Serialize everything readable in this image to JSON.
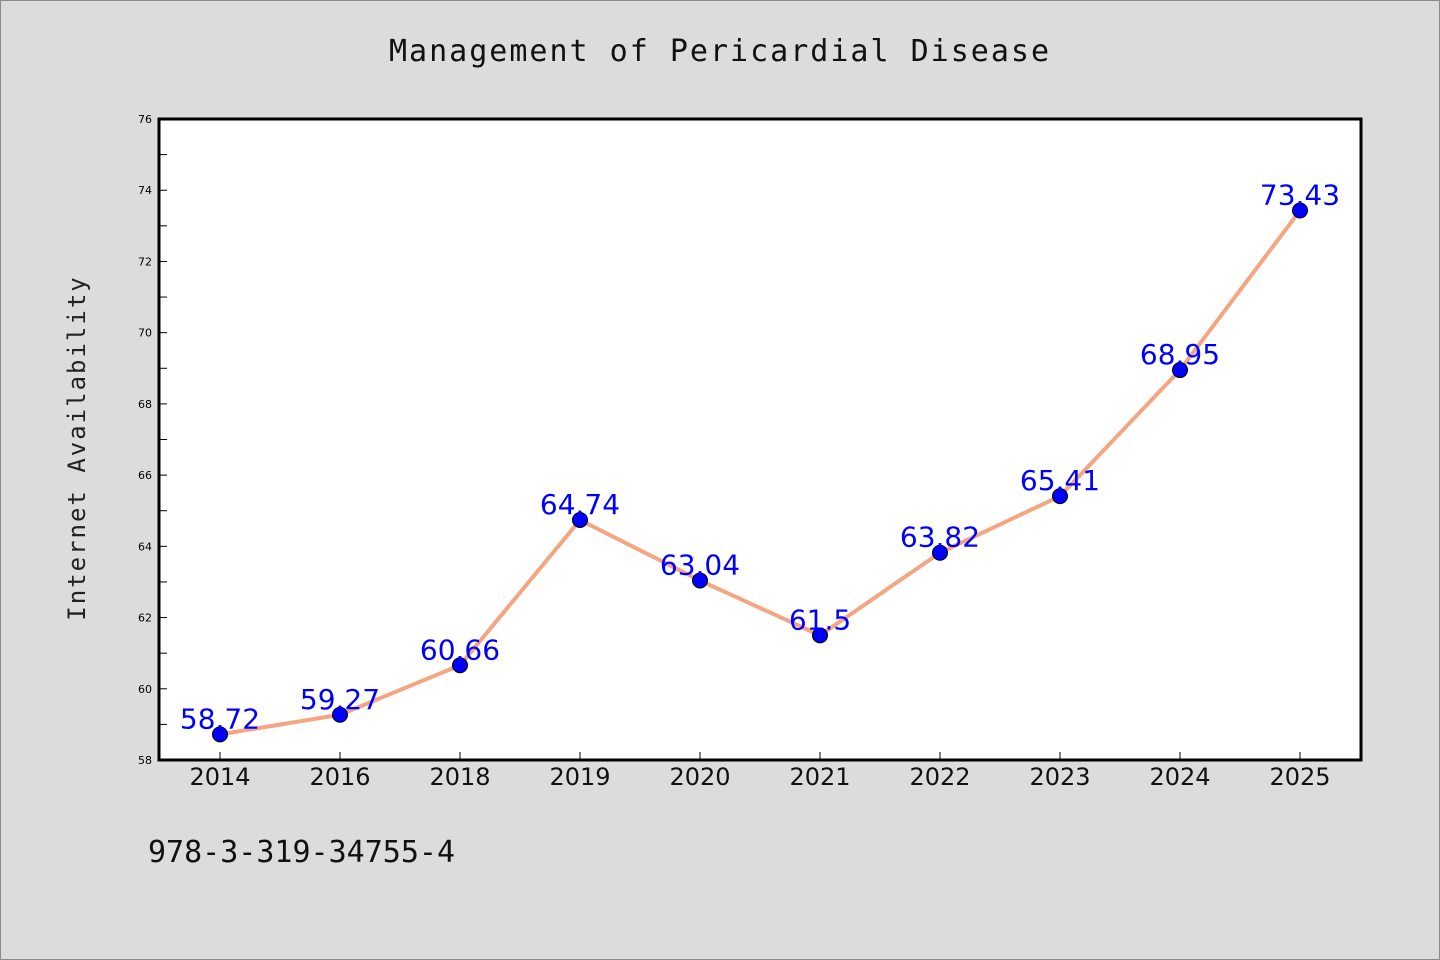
{
  "chart_data": {
    "type": "line",
    "title": "Management of Pericardial Disease",
    "xlabel": "",
    "ylabel": "Internet Availability",
    "categories": [
      "2014",
      "2016",
      "2018",
      "2019",
      "2020",
      "2021",
      "2022",
      "2023",
      "2024",
      "2025"
    ],
    "series": [
      {
        "values": [
          58.72,
          59.27,
          60.66,
          64.74,
          63.04,
          61.5,
          63.82,
          65.41,
          68.95,
          73.43
        ]
      }
    ],
    "data_labels": [
      "58.72",
      "59.27",
      "60.66",
      "64.74",
      "63.04",
      "61.5",
      "63.82",
      "65.41",
      "68.95",
      "73.43"
    ],
    "ylim": [
      58,
      76
    ],
    "yticks": [
      58,
      60,
      62,
      64,
      66,
      68,
      70,
      72,
      74,
      76
    ],
    "grid": false,
    "legend": "none",
    "colors": {
      "line": "#f4a582",
      "marker": "#0000ff",
      "label": "#0000ff",
      "background": "#dcdcdc",
      "plot_area": "#ffffff"
    }
  },
  "footer": {
    "isbn": "978-3-319-34755-4"
  }
}
